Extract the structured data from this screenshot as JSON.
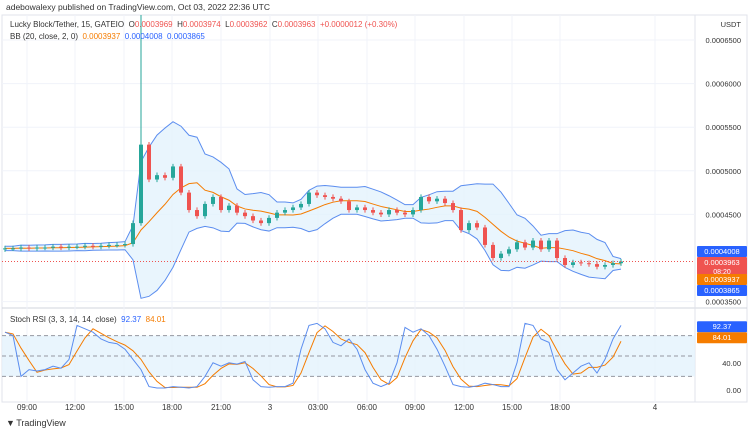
{
  "publisher": "adebowalexy published on TradingView.com, Oct 03, 2022 22:36 UTC",
  "symbol": "Lucky Block/Tether, 15, GATEIO",
  "ohlc": {
    "o_label": "O",
    "o": "0.0003969",
    "h_label": "H",
    "h": "0.0003974",
    "l_label": "L",
    "l": "0.0003962",
    "c_label": "C",
    "c": "0.0003963",
    "change": "+0.0000012 (+0.30%)"
  },
  "bb": {
    "label": "BB (20, close, 2, 0)",
    "basis": "0.0003937",
    "upper": "0.0004008",
    "lower": "0.0003865"
  },
  "stoch": {
    "label": "Stoch RSI (3, 3, 14, 14, close)",
    "k": "92.37",
    "d": "84.01"
  },
  "currency": "USDT",
  "price_tag": {
    "value": "0.0003963",
    "countdown": "08:20"
  },
  "footer": "TradingView",
  "colors": {
    "up": "#26a69a",
    "down": "#ef5350",
    "bb_band": "#5b8def",
    "bb_basis": "#f57c00",
    "bb_fill": "#e3f2fd",
    "k": "#5b8def",
    "d": "#f57c00"
  },
  "chart_data": [
    {
      "type": "candlestick",
      "title": "Lucky Block/Tether, 15, GATEIO",
      "y_ticks": [
        "0.0006500",
        "0.0006000",
        "0.0005500",
        "0.0005000",
        "0.0004500",
        "0.0003500"
      ],
      "y_tick_values": [
        0.00065,
        0.0006,
        0.00055,
        0.0005,
        0.00045,
        0.00035
      ],
      "x_ticks": [
        "09:00",
        "12:00",
        "15:00",
        "18:00",
        "21:00",
        "3",
        "03:00",
        "06:00",
        "09:00",
        "12:00",
        "15:00",
        "18:00",
        "4"
      ],
      "spike_high": 0.00068,
      "closes": [
        0.000411,
        0.000411,
        0.000412,
        0.000411,
        0.000412,
        0.000412,
        0.000413,
        0.000412,
        0.000413,
        0.000413,
        0.000414,
        0.000413,
        0.000414,
        0.000415,
        0.000415,
        0.000416,
        0.00044,
        0.00053,
        0.00049,
        0.000495,
        0.000492,
        0.000505,
        0.000475,
        0.000455,
        0.000448,
        0.000462,
        0.00047,
        0.000455,
        0.00046,
        0.000452,
        0.000448,
        0.000443,
        0.00044,
        0.000446,
        0.000452,
        0.000455,
        0.000458,
        0.000462,
        0.000475,
        0.000472,
        0.00047,
        0.000468,
        0.000465,
        0.000455,
        0.000458,
        0.000455,
        0.000452,
        0.00045,
        0.000455,
        0.000452,
        0.00045,
        0.000455,
        0.00047,
        0.000465,
        0.000468,
        0.000463,
        0.000455,
        0.000432,
        0.00044,
        0.000435,
        0.000415,
        0.0004,
        0.000405,
        0.00041,
        0.000418,
        0.000412,
        0.00042,
        0.00041,
        0.00042,
        0.0004,
        0.000392,
        0.000395,
        0.000394,
        0.000393,
        0.00039,
        0.000392,
        0.000394,
        0.000396
      ]
    },
    {
      "type": "line",
      "title": "Stoch RSI (3, 3, 14, 14, close)",
      "y_ticks": [
        "40.00",
        "0.00"
      ],
      "y_tick_values": [
        40,
        0
      ],
      "bands": [
        20,
        50,
        80
      ],
      "ylim": [
        0,
        100
      ],
      "k": [
        85,
        80,
        20,
        30,
        28,
        30,
        35,
        32,
        45,
        95,
        90,
        85,
        75,
        70,
        68,
        60,
        45,
        30,
        5,
        3,
        3,
        5,
        4,
        3,
        5,
        20,
        40,
        35,
        40,
        38,
        42,
        15,
        5,
        4,
        5,
        5,
        10,
        60,
        95,
        98,
        90,
        70,
        65,
        75,
        60,
        30,
        10,
        5,
        10,
        40,
        92,
        85,
        90,
        80,
        60,
        35,
        8,
        5,
        4,
        6,
        10,
        8,
        5,
        5,
        40,
        98,
        95,
        75,
        70,
        30,
        15,
        25,
        35,
        40,
        25,
        45,
        75,
        95
      ]
    }
  ]
}
